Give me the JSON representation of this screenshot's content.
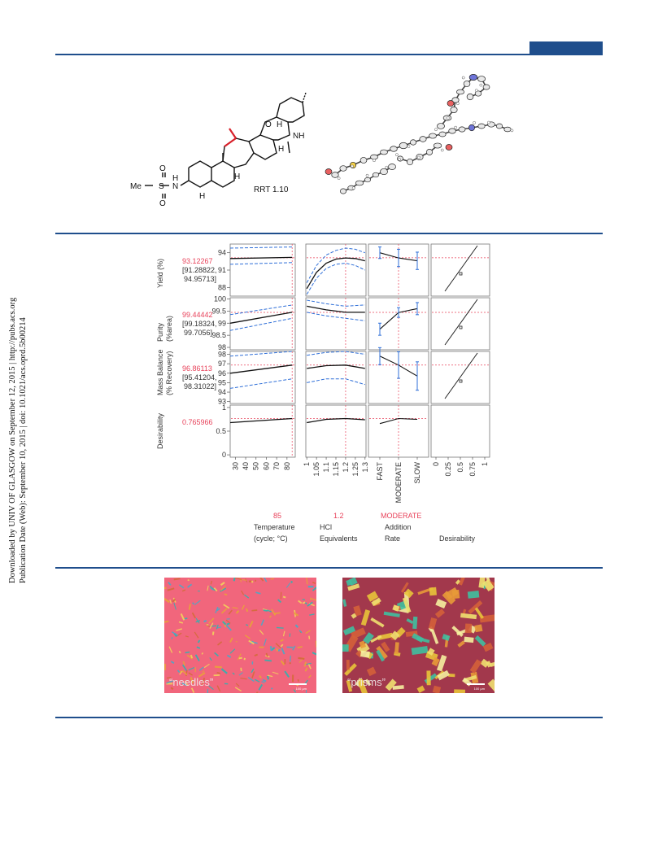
{
  "sidebar": {
    "line1": "Downloaded by UNIV OF GLASGOW on September 12, 2015 | http://pubs.acs.org",
    "line2": "Publication Date (Web): September 10, 2015 | doi: 10.1021/acs.oprd.5b00214"
  },
  "molecule": {
    "label": "RRT 1.10",
    "substituent": "Me",
    "atoms": {
      "S": "S",
      "N": "N",
      "O": "O",
      "H": "H",
      "NH": "NH"
    }
  },
  "profiler": {
    "rows": [
      {
        "label1": "Yield (%)",
        "label2": "",
        "value": "93.12267",
        "ci1": "[91.28822,",
        "ci2": "94.95713]",
        "ticks": [
          "94",
          "91",
          "88"
        ],
        "range": [
          86.5,
          95.5
        ]
      },
      {
        "label1": "Purity",
        "label2": "(%area)",
        "value": "99.44442",
        "ci1": "[99.18324,",
        "ci2": "99.7056]",
        "ticks": [
          "100",
          "99.5",
          "99",
          "98.5",
          "98"
        ],
        "range": [
          97.9,
          100.05
        ]
      },
      {
        "label1": "Mass Balance",
        "label2": "(% Recovery)",
        "value": "96.86113",
        "ci1": "[95.41204,",
        "ci2": "98.31022]",
        "ticks": [
          "98",
          "97",
          "96",
          "95",
          "94",
          "93"
        ],
        "range": [
          92.8,
          98.3
        ]
      },
      {
        "label1": "Desirability",
        "label2": "",
        "value": "0.765966",
        "ci1": "",
        "ci2": "",
        "ticks": [
          "1",
          "0.5",
          "0"
        ],
        "range": [
          -0.05,
          1.05
        ]
      }
    ],
    "factors": [
      {
        "name1": "Temperature",
        "name2": "(cycle; °C)",
        "current": "85",
        "ticks": [
          "30",
          "40",
          "50",
          "60",
          "70",
          "80"
        ]
      },
      {
        "name1": "HCl",
        "name2": "Equivalents",
        "current": "1.2",
        "ticks": [
          "1",
          "1.05",
          "1.1",
          "1.15",
          "1.2",
          "1.25",
          "1.3"
        ]
      },
      {
        "name1": "Addition",
        "name2": "Rate",
        "current": "MODERATE",
        "ticks": [
          "FAST",
          "MODERATE",
          "SLOW"
        ]
      },
      {
        "name1": "",
        "name2": "Desirability",
        "current": "",
        "ticks": [
          "0",
          "0.25",
          "0.5",
          "0.75",
          "1"
        ]
      }
    ],
    "colors": {
      "trace": "#111111",
      "ci": "#2f6fd8",
      "crosshair": "#e8425a",
      "error": "#2f6fd8"
    }
  },
  "chart_data": {
    "type": "line",
    "title": "",
    "factors": [
      "Temperature (cycle; °C)",
      "HCl Equivalents",
      "Addition Rate",
      "Desirability"
    ],
    "current": {
      "temperature": 85,
      "hcl_equivalents": 1.2,
      "addition_rate": "MODERATE"
    },
    "series": [
      {
        "name": "Yield (%)",
        "temperature": {
          "x": [
            25,
            85
          ],
          "y": [
            93.0,
            93.2
          ],
          "ci_low": [
            92.0,
            92.3
          ],
          "ci_high": [
            94.8,
            95.0
          ]
        },
        "hcl": {
          "x": [
            1.0,
            1.05,
            1.1,
            1.15,
            1.2,
            1.25,
            1.3
          ],
          "y": [
            87.8,
            90.6,
            92.2,
            92.9,
            93.1,
            93.0,
            92.6
          ],
          "ci_low": [
            86.8,
            89.6,
            91.3,
            92.0,
            92.2,
            91.8,
            91.0
          ],
          "ci_high": [
            88.8,
            91.8,
            93.6,
            94.4,
            94.8,
            94.6,
            94.0
          ]
        },
        "addition_rate": {
          "categories": [
            "FAST",
            "MODERATE",
            "SLOW"
          ],
          "y": [
            94.0,
            93.1,
            92.6
          ],
          "err": [
            1.0,
            1.5,
            1.5
          ]
        }
      },
      {
        "name": "Purity (%area)",
        "temperature": {
          "x": [
            25,
            85
          ],
          "y": [
            99.0,
            99.45
          ],
          "ci_low": [
            98.7,
            99.2
          ],
          "ci_high": [
            99.35,
            99.75
          ]
        },
        "hcl": {
          "x": [
            1.0,
            1.1,
            1.2,
            1.3
          ],
          "y": [
            99.7,
            99.55,
            99.45,
            99.45
          ],
          "ci_low": [
            99.45,
            99.3,
            99.2,
            99.1
          ],
          "ci_high": [
            99.95,
            99.8,
            99.7,
            99.75
          ]
        },
        "addition_rate": {
          "categories": [
            "FAST",
            "MODERATE",
            "SLOW"
          ],
          "y": [
            98.75,
            99.44,
            99.6
          ],
          "err": [
            0.25,
            0.2,
            0.25
          ]
        }
      },
      {
        "name": "Mass Balance (% Recovery)",
        "temperature": {
          "x": [
            25,
            85
          ],
          "y": [
            96.0,
            96.86
          ],
          "ci_low": [
            94.4,
            95.4
          ],
          "ci_high": [
            97.8,
            98.3
          ]
        },
        "hcl": {
          "x": [
            1.0,
            1.1,
            1.2,
            1.3
          ],
          "y": [
            96.5,
            96.8,
            96.86,
            96.5
          ],
          "ci_low": [
            95.0,
            95.4,
            95.4,
            94.8
          ],
          "ci_high": [
            97.9,
            98.2,
            98.3,
            98.0
          ]
        },
        "addition_rate": {
          "categories": [
            "FAST",
            "MODERATE",
            "SLOW"
          ],
          "y": [
            97.8,
            96.86,
            95.7
          ],
          "err": [
            0.9,
            1.4,
            1.5
          ]
        }
      },
      {
        "name": "Desirability",
        "temperature": {
          "x": [
            25,
            85
          ],
          "y": [
            0.68,
            0.766
          ]
        },
        "hcl": {
          "x": [
            1.0,
            1.1,
            1.2,
            1.3
          ],
          "y": [
            0.68,
            0.75,
            0.766,
            0.74
          ]
        },
        "addition_rate": {
          "categories": [
            "FAST",
            "MODERATE",
            "SLOW"
          ],
          "y": [
            0.66,
            0.766,
            0.75
          ]
        }
      }
    ]
  },
  "photos": [
    {
      "label": "“needles”",
      "scale": "100 μm"
    },
    {
      "label": "“prisms”",
      "scale": "100 μm"
    }
  ]
}
